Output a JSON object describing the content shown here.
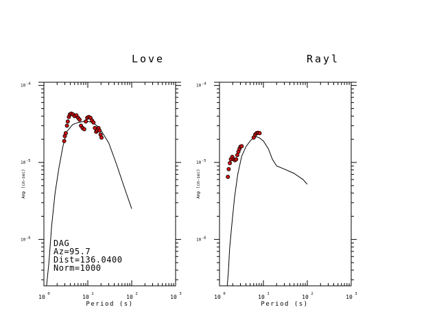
{
  "chart_data": [
    {
      "type": "scatter",
      "title": "Love",
      "xlabel": "Period (s)",
      "ylabel": "Amp (cm-sec)",
      "xscale": "log",
      "yscale": "log",
      "xlim": [
        1,
        1000
      ],
      "ylim": [
        2.5e-07,
        0.00011
      ],
      "x_ticks": [
        {
          "base": "10",
          "exp": "0"
        },
        {
          "base": "10",
          "exp": "1"
        },
        {
          "base": "10",
          "exp": "2"
        },
        {
          "base": "10",
          "exp": "3"
        }
      ],
      "y_ticks": [
        {
          "value": 1e-05,
          "label": "10",
          "exp": "-5"
        },
        {
          "value": 1e-06,
          "label": "10",
          "exp": "-6"
        }
      ],
      "y_tick_top": {
        "label": "10",
        "exp": "-4"
      },
      "annotations": [
        "DAG",
        "Az=95.7",
        "Dist=136.0400",
        "Norm=1000"
      ],
      "series": [
        {
          "kind": "line",
          "color": "#000000",
          "points": [
            [
              1.15,
              2.5e-07
            ],
            [
              1.3,
              5e-07
            ],
            [
              1.5,
              1.5e-06
            ],
            [
              1.8,
              4e-06
            ],
            [
              2.2,
              8.5e-06
            ],
            [
              2.7,
              1.6e-05
            ],
            [
              3.3,
              2.5e-05
            ],
            [
              4.5,
              3.1e-05
            ],
            [
              6,
              3.3e-05
            ],
            [
              8,
              3.4e-05
            ],
            [
              10,
              3.4e-05
            ],
            [
              13,
              3.3e-05
            ],
            [
              16,
              3e-05
            ],
            [
              20,
              2.6e-05
            ],
            [
              30,
              1.8e-05
            ],
            [
              45,
              9.5e-06
            ],
            [
              70,
              4.5e-06
            ],
            [
              100,
              2.5e-06
            ]
          ]
        },
        {
          "kind": "points",
          "color": "#cc1111",
          "points": [
            [
              2.9,
              1.9e-05
            ],
            [
              3.0,
              2.2e-05
            ],
            [
              3.15,
              2.4e-05
            ],
            [
              3.35,
              3e-05
            ],
            [
              3.5,
              3.4e-05
            ],
            [
              3.7,
              3.9e-05
            ],
            [
              3.9,
              4.2e-05
            ],
            [
              4.2,
              4.3e-05
            ],
            [
              4.6,
              4.2e-05
            ],
            [
              5.0,
              4e-05
            ],
            [
              5.5,
              4.1e-05
            ],
            [
              6.0,
              3.8e-05
            ],
            [
              6.5,
              3.6e-05
            ],
            [
              7.0,
              3e-05
            ],
            [
              7.6,
              2.8e-05
            ],
            [
              8.3,
              2.7e-05
            ],
            [
              9.0,
              3.4e-05
            ],
            [
              9.7,
              3.8e-05
            ],
            [
              10.5,
              3.9e-05
            ],
            [
              11.5,
              3.8e-05
            ],
            [
              12.5,
              3.5e-05
            ],
            [
              13.5,
              3.3e-05
            ],
            [
              14.5,
              2.8e-05
            ],
            [
              15.5,
              2.5e-05
            ],
            [
              16.5,
              2.6e-05
            ],
            [
              17.5,
              2.8e-05
            ],
            [
              18.5,
              2.6e-05
            ],
            [
              19.5,
              2.3e-05
            ],
            [
              20.5,
              2.1e-05
            ]
          ]
        }
      ]
    },
    {
      "type": "scatter",
      "title": "Rayl",
      "xlabel": "Period (s)",
      "ylabel": "Amp (cm-sec)",
      "xscale": "log",
      "yscale": "log",
      "xlim": [
        1,
        1000
      ],
      "ylim": [
        2.5e-07,
        0.00011
      ],
      "x_ticks": [
        {
          "base": "10",
          "exp": "0"
        },
        {
          "base": "10",
          "exp": "1"
        },
        {
          "base": "10",
          "exp": "2"
        },
        {
          "base": "10",
          "exp": "3"
        }
      ],
      "y_ticks": [
        {
          "value": 1e-05,
          "label": "10",
          "exp": "-5"
        },
        {
          "value": 1e-06,
          "label": "10",
          "exp": "-6"
        }
      ],
      "y_tick_top": {
        "label": "10",
        "exp": "-4"
      },
      "series": [
        {
          "kind": "line",
          "color": "#000000",
          "points": [
            [
              1.5,
              2.5e-07
            ],
            [
              1.6,
              4e-07
            ],
            [
              1.7,
              7.5e-07
            ],
            [
              1.9,
              1.5e-06
            ],
            [
              2.2,
              3.5e-06
            ],
            [
              2.6,
              7e-06
            ],
            [
              3.2,
              1.2e-05
            ],
            [
              4,
              1.6e-05
            ],
            [
              5,
              1.9e-05
            ],
            [
              6,
              2.1e-05
            ],
            [
              7,
              2.15e-05
            ],
            [
              8,
              2.1e-05
            ],
            [
              10,
              1.9e-05
            ],
            [
              13,
              1.5e-05
            ],
            [
              16,
              1.1e-05
            ],
            [
              20,
              9e-06
            ],
            [
              30,
              8.2e-06
            ],
            [
              50,
              7.2e-06
            ],
            [
              80,
              6e-06
            ],
            [
              100,
              5.2e-06
            ]
          ]
        },
        {
          "kind": "points",
          "color": "#cc1111",
          "points": [
            [
              1.55,
              6.5e-06
            ],
            [
              1.62,
              8.2e-06
            ],
            [
              1.72,
              9.8e-06
            ],
            [
              1.82,
              1.1e-05
            ],
            [
              1.95,
              1.18e-05
            ],
            [
              2.1,
              1.1e-05
            ],
            [
              2.25,
              1.07e-05
            ],
            [
              2.4,
              1.1e-05
            ],
            [
              2.55,
              1.25e-05
            ],
            [
              2.7,
              1.38e-05
            ],
            [
              2.85,
              1.5e-05
            ],
            [
              3.0,
              1.6e-05
            ],
            [
              3.2,
              1.63e-05
            ],
            [
              6.0,
              2.1e-05
            ],
            [
              6.5,
              2.3e-05
            ],
            [
              7.0,
              2.4e-05
            ],
            [
              7.5,
              2.43e-05
            ],
            [
              8.2,
              2.4e-05
            ]
          ]
        }
      ]
    }
  ]
}
